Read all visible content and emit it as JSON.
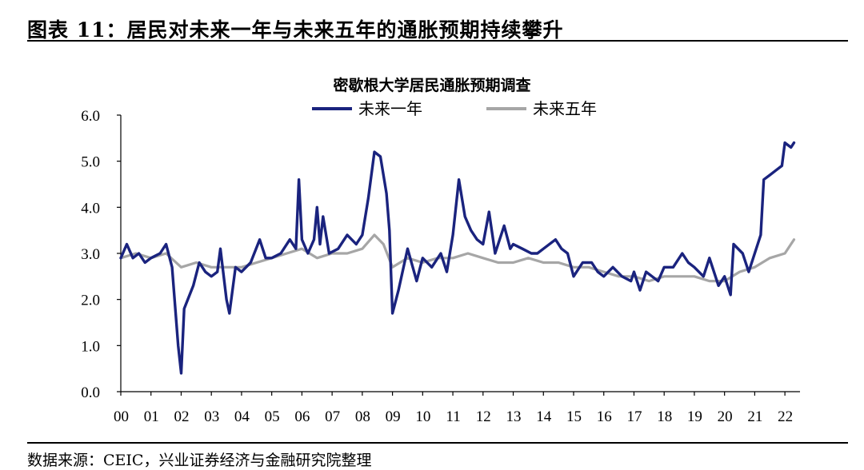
{
  "figure": {
    "title": "图表 11：居民对未来一年与未来五年的通胀预期持续攀升",
    "source": "数据来源：CEIC，兴业证券经济与金融研究院整理"
  },
  "chart_data": {
    "type": "line",
    "title": "密歇根大学居民通胀预期调查",
    "xlabel": "",
    "ylabel": "",
    "ylim": [
      0,
      6
    ],
    "xlim": [
      2000.0,
      2022.5
    ],
    "yticks": [
      "0.0",
      "1.0",
      "2.0",
      "3.0",
      "4.0",
      "5.0",
      "6.0"
    ],
    "xticks": [
      "00",
      "01",
      "02",
      "03",
      "04",
      "05",
      "06",
      "07",
      "08",
      "09",
      "10",
      "11",
      "12",
      "13",
      "14",
      "15",
      "16",
      "17",
      "18",
      "19",
      "20",
      "21",
      "22"
    ],
    "legend_position": "top-center",
    "grid": false,
    "series": [
      {
        "name": "未来一年",
        "color": "#1a237e",
        "points": [
          [
            2000.0,
            2.9
          ],
          [
            2000.2,
            3.2
          ],
          [
            2000.4,
            2.9
          ],
          [
            2000.6,
            3.0
          ],
          [
            2000.8,
            2.8
          ],
          [
            2001.0,
            2.9
          ],
          [
            2001.3,
            3.0
          ],
          [
            2001.5,
            3.2
          ],
          [
            2001.7,
            2.7
          ],
          [
            2001.9,
            1.0
          ],
          [
            2002.0,
            0.4
          ],
          [
            2002.1,
            1.8
          ],
          [
            2002.4,
            2.3
          ],
          [
            2002.6,
            2.8
          ],
          [
            2002.8,
            2.6
          ],
          [
            2003.0,
            2.5
          ],
          [
            2003.2,
            2.6
          ],
          [
            2003.3,
            3.1
          ],
          [
            2003.5,
            2.0
          ],
          [
            2003.6,
            1.7
          ],
          [
            2003.8,
            2.7
          ],
          [
            2004.0,
            2.6
          ],
          [
            2004.3,
            2.8
          ],
          [
            2004.6,
            3.3
          ],
          [
            2004.8,
            2.9
          ],
          [
            2005.0,
            2.9
          ],
          [
            2005.3,
            3.0
          ],
          [
            2005.6,
            3.3
          ],
          [
            2005.8,
            3.1
          ],
          [
            2005.9,
            4.6
          ],
          [
            2006.0,
            3.3
          ],
          [
            2006.2,
            3.0
          ],
          [
            2006.4,
            3.3
          ],
          [
            2006.5,
            4.0
          ],
          [
            2006.6,
            3.2
          ],
          [
            2006.7,
            3.8
          ],
          [
            2006.9,
            3.0
          ],
          [
            2007.2,
            3.1
          ],
          [
            2007.5,
            3.4
          ],
          [
            2007.8,
            3.2
          ],
          [
            2008.0,
            3.4
          ],
          [
            2008.2,
            4.2
          ],
          [
            2008.4,
            5.2
          ],
          [
            2008.6,
            5.1
          ],
          [
            2008.8,
            4.3
          ],
          [
            2008.9,
            3.5
          ],
          [
            2009.0,
            1.7
          ],
          [
            2009.2,
            2.2
          ],
          [
            2009.4,
            2.8
          ],
          [
            2009.5,
            3.1
          ],
          [
            2009.8,
            2.4
          ],
          [
            2010.0,
            2.9
          ],
          [
            2010.3,
            2.7
          ],
          [
            2010.6,
            3.0
          ],
          [
            2010.8,
            2.6
          ],
          [
            2011.0,
            3.4
          ],
          [
            2011.2,
            4.6
          ],
          [
            2011.4,
            3.8
          ],
          [
            2011.6,
            3.5
          ],
          [
            2011.8,
            3.3
          ],
          [
            2012.0,
            3.2
          ],
          [
            2012.2,
            3.9
          ],
          [
            2012.4,
            3.0
          ],
          [
            2012.7,
            3.6
          ],
          [
            2012.9,
            3.1
          ],
          [
            2013.0,
            3.2
          ],
          [
            2013.3,
            3.1
          ],
          [
            2013.6,
            3.0
          ],
          [
            2013.8,
            3.0
          ],
          [
            2014.0,
            3.1
          ],
          [
            2014.4,
            3.3
          ],
          [
            2014.6,
            3.1
          ],
          [
            2014.8,
            3.0
          ],
          [
            2015.0,
            2.5
          ],
          [
            2015.3,
            2.8
          ],
          [
            2015.6,
            2.8
          ],
          [
            2015.8,
            2.6
          ],
          [
            2016.0,
            2.5
          ],
          [
            2016.3,
            2.7
          ],
          [
            2016.6,
            2.5
          ],
          [
            2016.9,
            2.4
          ],
          [
            2017.0,
            2.6
          ],
          [
            2017.2,
            2.2
          ],
          [
            2017.4,
            2.6
          ],
          [
            2017.6,
            2.5
          ],
          [
            2017.8,
            2.4
          ],
          [
            2018.0,
            2.7
          ],
          [
            2018.3,
            2.7
          ],
          [
            2018.6,
            3.0
          ],
          [
            2018.8,
            2.8
          ],
          [
            2019.0,
            2.7
          ],
          [
            2019.3,
            2.5
          ],
          [
            2019.5,
            2.9
          ],
          [
            2019.8,
            2.3
          ],
          [
            2020.0,
            2.5
          ],
          [
            2020.2,
            2.1
          ],
          [
            2020.3,
            3.2
          ],
          [
            2020.6,
            3.0
          ],
          [
            2020.8,
            2.6
          ],
          [
            2021.0,
            3.0
          ],
          [
            2021.2,
            3.4
          ],
          [
            2021.3,
            4.6
          ],
          [
            2021.5,
            4.7
          ],
          [
            2021.7,
            4.8
          ],
          [
            2021.9,
            4.9
          ],
          [
            2022.0,
            5.4
          ],
          [
            2022.2,
            5.3
          ],
          [
            2022.3,
            5.4
          ]
        ]
      },
      {
        "name": "未来五年",
        "color": "#a6a6a6",
        "points": [
          [
            2000.0,
            2.9
          ],
          [
            2000.5,
            3.0
          ],
          [
            2001.0,
            2.9
          ],
          [
            2001.5,
            3.0
          ],
          [
            2002.0,
            2.7
          ],
          [
            2002.5,
            2.8
          ],
          [
            2003.0,
            2.7
          ],
          [
            2003.5,
            2.7
          ],
          [
            2004.0,
            2.7
          ],
          [
            2004.5,
            2.8
          ],
          [
            2005.0,
            2.9
          ],
          [
            2005.5,
            3.0
          ],
          [
            2006.0,
            3.1
          ],
          [
            2006.5,
            2.9
          ],
          [
            2007.0,
            3.0
          ],
          [
            2007.5,
            3.0
          ],
          [
            2008.0,
            3.1
          ],
          [
            2008.4,
            3.4
          ],
          [
            2008.7,
            3.2
          ],
          [
            2009.0,
            2.7
          ],
          [
            2009.5,
            2.9
          ],
          [
            2010.0,
            2.8
          ],
          [
            2010.5,
            2.9
          ],
          [
            2011.0,
            2.9
          ],
          [
            2011.5,
            3.0
          ],
          [
            2012.0,
            2.9
          ],
          [
            2012.5,
            2.8
          ],
          [
            2013.0,
            2.8
          ],
          [
            2013.5,
            2.9
          ],
          [
            2014.0,
            2.8
          ],
          [
            2014.5,
            2.8
          ],
          [
            2015.0,
            2.7
          ],
          [
            2015.5,
            2.7
          ],
          [
            2016.0,
            2.6
          ],
          [
            2016.5,
            2.5
          ],
          [
            2017.0,
            2.5
          ],
          [
            2017.5,
            2.4
          ],
          [
            2018.0,
            2.5
          ],
          [
            2018.5,
            2.5
          ],
          [
            2019.0,
            2.5
          ],
          [
            2019.5,
            2.4
          ],
          [
            2020.0,
            2.4
          ],
          [
            2020.5,
            2.6
          ],
          [
            2021.0,
            2.7
          ],
          [
            2021.5,
            2.9
          ],
          [
            2022.0,
            3.0
          ],
          [
            2022.3,
            3.3
          ]
        ]
      }
    ]
  }
}
